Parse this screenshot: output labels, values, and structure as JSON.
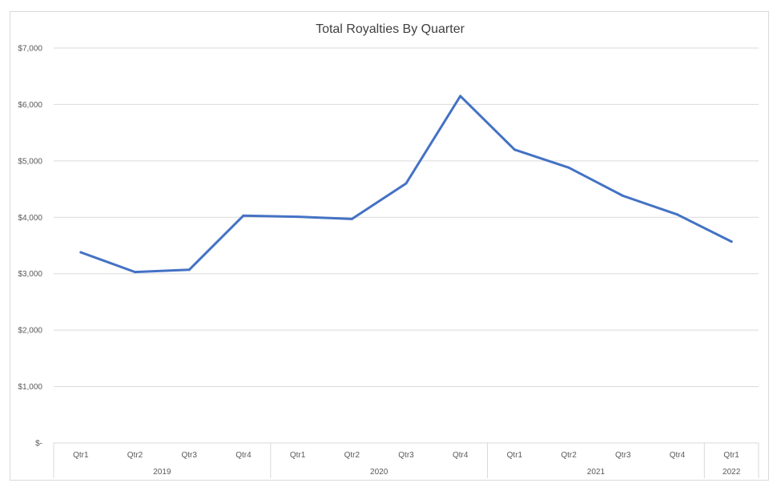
{
  "chart_data": {
    "type": "line",
    "title": "Total Royalties By Quarter",
    "xlabel": "",
    "ylabel": "",
    "categories": [
      "Qtr1",
      "Qtr2",
      "Qtr3",
      "Qtr4",
      "Qtr1",
      "Qtr2",
      "Qtr3",
      "Qtr4",
      "Qtr1",
      "Qtr2",
      "Qtr3",
      "Qtr4",
      "Qtr1"
    ],
    "groups": [
      {
        "label": "2019",
        "count": 4
      },
      {
        "label": "2020",
        "count": 4
      },
      {
        "label": "2021",
        "count": 4
      },
      {
        "label": "2022",
        "count": 1
      }
    ],
    "series": [
      {
        "values": [
          3380,
          3030,
          3070,
          4030,
          4010,
          3970,
          4600,
          6150,
          5200,
          4880,
          4380,
          4050,
          3570
        ]
      }
    ],
    "ylim": [
      0,
      7000
    ],
    "yticks": [
      {
        "value": 0,
        "label": "$-"
      },
      {
        "value": 1000,
        "label": "$1,000"
      },
      {
        "value": 2000,
        "label": "$2,000"
      },
      {
        "value": 3000,
        "label": "$3,000"
      },
      {
        "value": 4000,
        "label": "$4,000"
      },
      {
        "value": 5000,
        "label": "$5,000"
      },
      {
        "value": 6000,
        "label": "$6,000"
      },
      {
        "value": 7000,
        "label": "$7,000"
      }
    ],
    "grid": true,
    "colors": {
      "line": "#4472c4",
      "grid": "#d9d9d9",
      "axis_text": "#595959"
    }
  }
}
